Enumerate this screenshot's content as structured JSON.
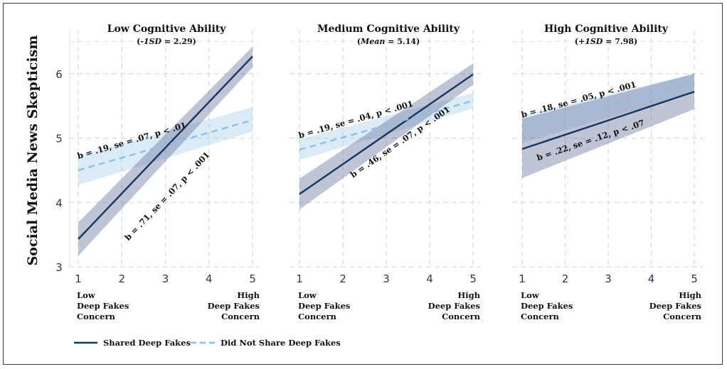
{
  "chart_data": {
    "type": "line",
    "ylabel": "Social Media News Skepticism",
    "xticks": [
      1,
      2,
      3,
      4,
      5
    ],
    "yticks": [
      3,
      4,
      5,
      6
    ],
    "xlim": [
      1,
      5
    ],
    "ylim": [
      3,
      6.5
    ],
    "grid": true,
    "x_axis_end_labels": {
      "low": [
        "Low",
        "Deep Fakes",
        "Concern"
      ],
      "high": [
        "High",
        "Deep Fakes",
        "Concern"
      ]
    },
    "legend": {
      "placement": "bottom-left",
      "entries": [
        {
          "name": "Shared Deep Fakes",
          "style": "solid",
          "color": "#17365d"
        },
        {
          "name": "Did Not Share Deep Fakes",
          "style": "dashed",
          "color": "#8fbfe0"
        }
      ]
    },
    "panels": [
      {
        "title": "Low Cognitive Ability",
        "subtitle_italic": "-1SD",
        "subtitle_rest": " = 2.29",
        "series": [
          {
            "name": "Shared Deep Fakes",
            "x": [
              1,
              5
            ],
            "y": [
              3.43,
              6.27
            ],
            "ci_lower": [
              3.17,
              6.1
            ],
            "ci_upper": [
              3.69,
              6.42
            ],
            "annotation": "b = .71, se = .07, p < .001"
          },
          {
            "name": "Did Not Share Deep Fakes",
            "x": [
              1,
              5
            ],
            "y": [
              4.5,
              5.28
            ],
            "ci_lower": [
              4.27,
              5.1
            ],
            "ci_upper": [
              4.73,
              5.48
            ],
            "annotation": "b = .19, se = .07, p < .01"
          }
        ]
      },
      {
        "title": "Medium Cognitive Ability",
        "subtitle_italic": "Mean",
        "subtitle_rest": " = 5.14",
        "series": [
          {
            "name": "Shared Deep Fakes",
            "x": [
              1,
              5
            ],
            "y": [
              4.13,
              5.99
            ],
            "ci_lower": [
              3.89,
              5.83
            ],
            "ci_upper": [
              4.37,
              6.16
            ],
            "annotation": "b = .46, se = .07, p < .001"
          },
          {
            "name": "Did Not Share Deep Fakes",
            "x": [
              1,
              5
            ],
            "y": [
              4.82,
              5.58
            ],
            "ci_lower": [
              4.66,
              5.46
            ],
            "ci_upper": [
              4.98,
              5.7
            ],
            "annotation": "b = .19, se = .04, p < .001"
          }
        ]
      },
      {
        "title": "High Cognitive Ability",
        "subtitle_italic": "+1SD",
        "subtitle_rest": " = 7.98",
        "series": [
          {
            "name": "Shared Deep Fakes",
            "x": [
              1,
              5
            ],
            "y": [
              4.83,
              5.72
            ],
            "ci_lower": [
              4.38,
              5.45
            ],
            "ci_upper": [
              5.3,
              6.0
            ],
            "annotation": "b = .22, se = .12, p < .07"
          },
          {
            "name": "Did Not Share Deep Fakes",
            "x": [
              1,
              5
            ],
            "y": [
              5.14,
              5.86
            ],
            "ci_lower": [
              4.93,
              5.7
            ],
            "ci_upper": [
              5.35,
              6.0
            ],
            "annotation": "b = .18, se = .05, p < .001"
          }
        ]
      }
    ]
  }
}
